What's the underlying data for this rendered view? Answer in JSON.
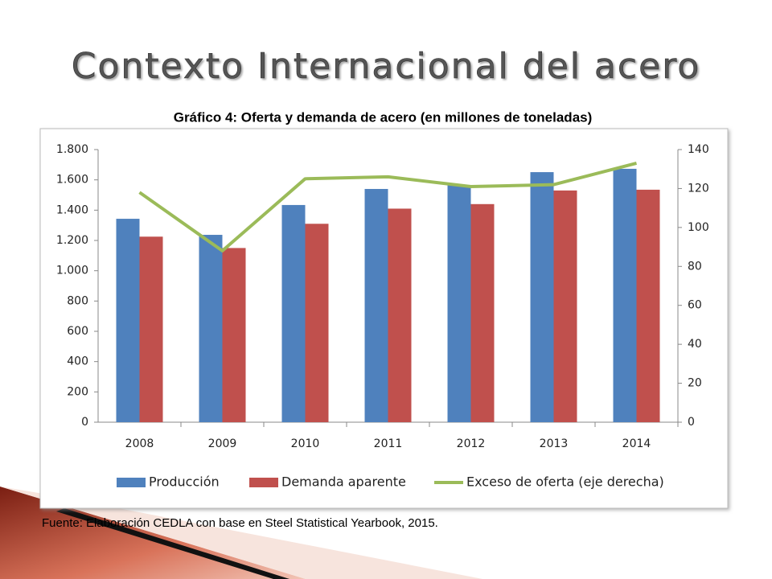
{
  "title": "Contexto Internacional del acero",
  "footnote": "Fuente: Elaboración CEDLA con base en Steel Statistical Yearbook, 2015.",
  "chart_data": {
    "type": "bar",
    "title": "Gráfico 4: Oferta y demanda de acero (en millones de toneladas)",
    "categories": [
      "2008",
      "2009",
      "2010",
      "2011",
      "2012",
      "2013",
      "2014"
    ],
    "series": [
      {
        "name": "Producción",
        "color": "#4f81bd",
        "values": [
          1343,
          1237,
          1434,
          1540,
          1566,
          1651,
          1673
        ]
      },
      {
        "name": "Demanda aparente",
        "color": "#c0504d",
        "values": [
          1225,
          1150,
          1310,
          1410,
          1440,
          1530,
          1535
        ]
      },
      {
        "name": "Exceso de oferta (eje derecha)",
        "color": "#9bbb59",
        "type": "line",
        "axis": "y2",
        "values": [
          118,
          88,
          125,
          126,
          121,
          122,
          133
        ]
      }
    ],
    "ylim": [
      0,
      1800
    ],
    "yticks": [
      0,
      200,
      400,
      600,
      800,
      {
        "value": 1000,
        "label": "1.000"
      },
      {
        "value": 1200,
        "label": "1.200"
      },
      {
        "value": 1400,
        "label": "1.400"
      },
      {
        "value": 1600,
        "label": "1.600"
      },
      {
        "value": 1800,
        "label": "1.800"
      }
    ],
    "y2lim": [
      0,
      140
    ],
    "y2ticks": [
      0,
      20,
      40,
      60,
      80,
      100,
      120,
      140
    ],
    "legend": "bottom"
  }
}
